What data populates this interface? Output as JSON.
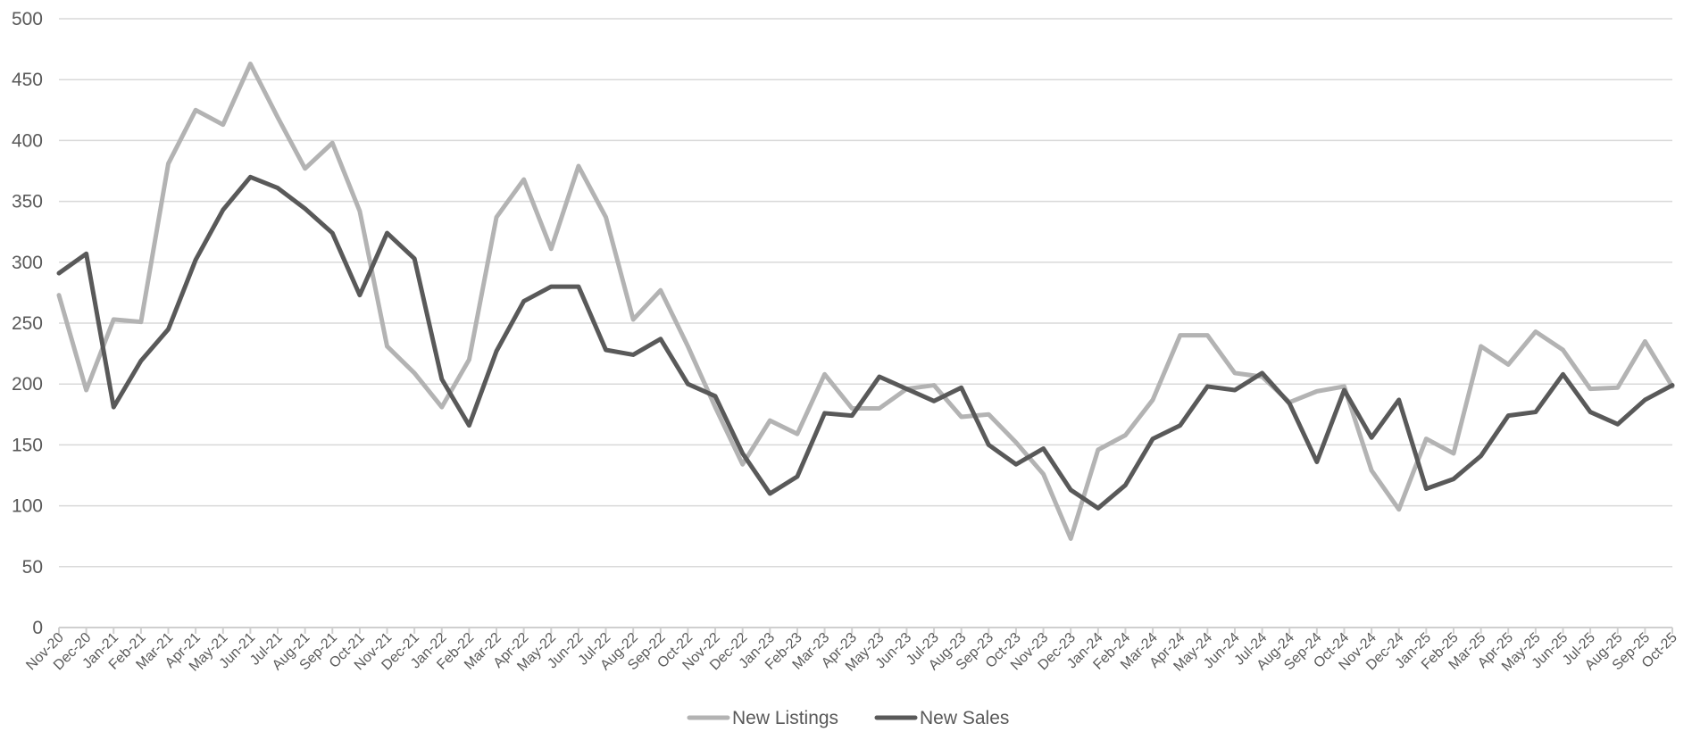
{
  "chart_data": {
    "type": "line",
    "title": "",
    "xlabel": "",
    "ylabel": "",
    "ylim": [
      0,
      500
    ],
    "yticks": [
      0,
      50,
      100,
      150,
      200,
      250,
      300,
      350,
      400,
      450,
      500
    ],
    "grid": true,
    "legend_position": "bottom-center",
    "categories": [
      "Nov-20",
      "Dec-20",
      "Jan-21",
      "Feb-21",
      "Mar-21",
      "Apr-21",
      "May-21",
      "Jun-21",
      "Jul-21",
      "Aug-21",
      "Sep-21",
      "Oct-21",
      "Nov-21",
      "Dec-21",
      "Jan-22",
      "Feb-22",
      "Mar-22",
      "Apr-22",
      "May-22",
      "Jun-22",
      "Jul-22",
      "Aug-22",
      "Sep-22",
      "Oct-22",
      "Nov-22",
      "Dec-22",
      "Jan-23",
      "Feb-23",
      "Mar-23",
      "Apr-23",
      "May-23",
      "Jun-23",
      "Jul-23",
      "Aug-23",
      "Sep-23",
      "Oct-23",
      "Nov-23",
      "Dec-23",
      "Jan-24",
      "Feb-24",
      "Mar-24",
      "Apr-24",
      "May-24",
      "Jun-24",
      "Jul-24",
      "Aug-24",
      "Sep-24",
      "Oct-24",
      "Nov-24",
      "Dec-24",
      "Jan-25",
      "Feb-25",
      "Mar-25",
      "Apr-25",
      "May-25",
      "Jun-25",
      "Jul-25",
      "Aug-25",
      "Sep-25",
      "Oct-25"
    ],
    "series": [
      {
        "name": "New Listings",
        "color": "#b3b3b3",
        "values": [
          273,
          195,
          253,
          251,
          381,
          425,
          413,
          463,
          419,
          377,
          398,
          342,
          231,
          209,
          181,
          220,
          337,
          368,
          311,
          379,
          337,
          253,
          277,
          231,
          181,
          134,
          170,
          159,
          208,
          180,
          180,
          196,
          199,
          173,
          175,
          152,
          126,
          73,
          146,
          158,
          187,
          240,
          240,
          209,
          206,
          185,
          194,
          198,
          129,
          97,
          155,
          143,
          231,
          216,
          243,
          228,
          196,
          197,
          235,
          198
        ]
      },
      {
        "name": "New Sales",
        "color": "#595959",
        "values": [
          291,
          307,
          181,
          219,
          245,
          302,
          343,
          370,
          361,
          344,
          324,
          273,
          324,
          303,
          204,
          166,
          227,
          268,
          280,
          280,
          228,
          224,
          237,
          200,
          190,
          143,
          110,
          124,
          176,
          174,
          206,
          196,
          186,
          197,
          150,
          134,
          147,
          113,
          98,
          117,
          155,
          166,
          198,
          195,
          209,
          184,
          136,
          195,
          156,
          187,
          114,
          122,
          141,
          174,
          177,
          208,
          177,
          167,
          187,
          199
        ]
      }
    ]
  }
}
